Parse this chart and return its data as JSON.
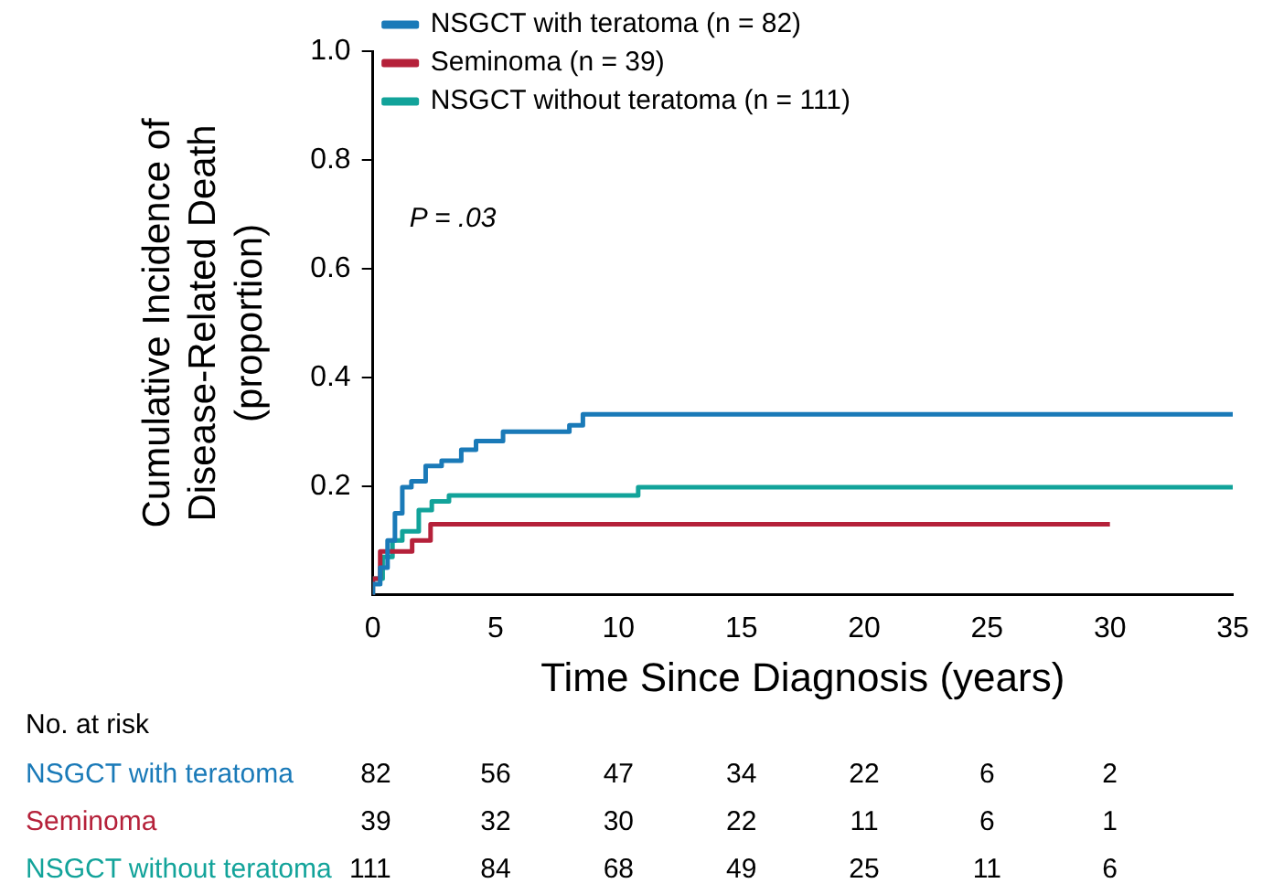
{
  "chart_data": {
    "type": "step",
    "xlabel": "Time Since Diagnosis (years)",
    "ylabel": "Cumulative Incidence of Disease-Related Death (proportion)",
    "xlim": [
      0,
      35
    ],
    "xticks": [
      0,
      5,
      10,
      15,
      20,
      25,
      30,
      35
    ],
    "ylim": [
      0,
      1
    ],
    "yticks": [
      0.2,
      0.4,
      0.6,
      0.8,
      {
        "value": 1,
        "label": "1.0"
      }
    ],
    "legend": "top left",
    "grid": false,
    "series": [
      {
        "name": "NSGCT with teratoma (n = 82)",
        "color": "#1a7ab8",
        "x": [
          0,
          0.3,
          0.6,
          0.9,
          1.2,
          1.57,
          2.15,
          2.8,
          3.6,
          4.2,
          5.3,
          8.0,
          8.55,
          14.1,
          35
        ],
        "values": [
          0,
          0.02,
          0.05,
          0.1,
          0.15,
          0.198,
          0.209,
          0.237,
          0.247,
          0.267,
          0.283,
          0.3,
          0.312,
          0.332,
          0.332
        ]
      },
      {
        "name": "Seminoma (n = 39)",
        "color": "#b5213a",
        "x": [
          0,
          0.3,
          1.6,
          2.35,
          6.7,
          30
        ],
        "values": [
          0,
          0.03,
          0.08,
          0.1,
          0.13,
          0.13
        ]
      },
      {
        "name": "NSGCT without teratoma (n = 111)",
        "color": "#12a39a",
        "x": [
          0,
          0.4,
          0.8,
          1.2,
          1.87,
          2.4,
          3.1,
          10.8,
          12.5,
          35
        ],
        "values": [
          0,
          0.03,
          0.07,
          0.1,
          0.117,
          0.156,
          0.172,
          0.183,
          0.198,
          0.198
        ]
      }
    ],
    "annotations": [
      "P = .03",
      "No. at risk",
      "NSGCT with teratoma",
      "82",
      "56",
      "47",
      "34",
      "22",
      "6",
      "2",
      "Seminoma",
      "39",
      "32",
      "30",
      "22",
      "11",
      "6",
      "1",
      "NSGCT without teratoma",
      "111",
      "84",
      "68",
      "49",
      "25",
      "11",
      "6"
    ]
  }
}
